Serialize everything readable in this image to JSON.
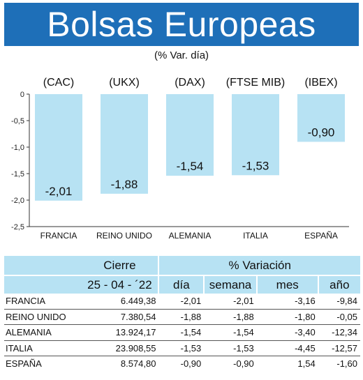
{
  "title": "Bolsas Europeas",
  "subtitle": "(% Var. día)",
  "chart_data": {
    "type": "bar",
    "indices": [
      "(CAC)",
      "(UKX)",
      "(DAX)",
      "(FTSE MIB)",
      "(IBEX)"
    ],
    "categories": [
      "FRANCIA",
      "REINO UNIDO",
      "ALEMANIA",
      "ITALIA",
      "ESPAÑA"
    ],
    "values": [
      -2.01,
      -1.88,
      -1.54,
      -1.53,
      -0.9
    ],
    "value_labels": [
      "-2,01",
      "-1,88",
      "-1,54",
      "-1,53",
      "-0,90"
    ],
    "ylim": [
      -2.5,
      0
    ],
    "yticks": [
      "0",
      "-0,5",
      "-1,0",
      "-1,5",
      "-2,0",
      "-2,5"
    ],
    "grid": false,
    "bar_color": "#b7e2f3"
  },
  "table": {
    "header_cierre": "Cierre",
    "header_variacion": "% Variación",
    "date": "25 - 04 - ´22",
    "col_dia": "día",
    "col_semana": "semana",
    "col_mes": "mes",
    "col_anio": "año",
    "rows": [
      {
        "name": "FRANCIA",
        "cierre": "6.449,38",
        "dia": "-2,01",
        "semana": "-2,01",
        "mes": "-3,16",
        "anio": "-9,84"
      },
      {
        "name": "REINO UNIDO",
        "cierre": "7.380,54",
        "dia": "-1,88",
        "semana": "-1,88",
        "mes": "-1,80",
        "anio": "-0,05"
      },
      {
        "name": "ALEMANIA",
        "cierre": "13.924,17",
        "dia": "-1,54",
        "semana": "-1,54",
        "mes": "-3,40",
        "anio": "-12,34"
      },
      {
        "name": "ITALIA",
        "cierre": "23.908,55",
        "dia": "-1,53",
        "semana": "-1,53",
        "mes": "-4,45",
        "anio": "-12,57"
      },
      {
        "name": "ESPAÑA",
        "cierre": "8.574,80",
        "dia": "-0,90",
        "semana": "-0,90",
        "mes": "1,54",
        "anio": "-1,60"
      }
    ]
  }
}
